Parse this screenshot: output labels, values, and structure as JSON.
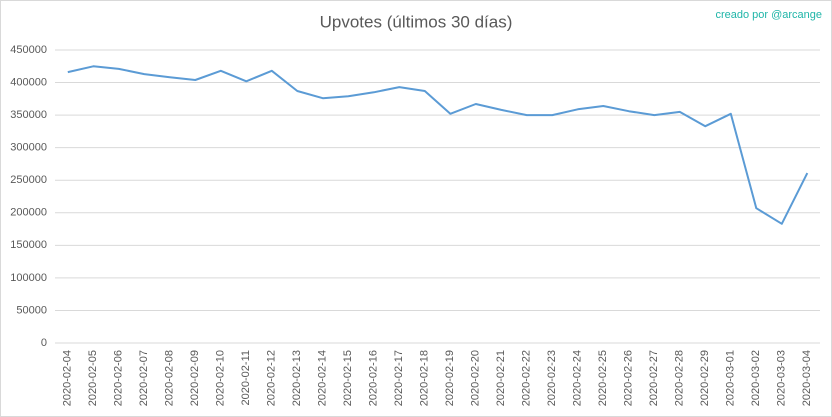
{
  "chart_data": {
    "type": "line",
    "title": "Upvotes (últimos 30 días)",
    "credit": "creado por @arcange",
    "categories": [
      "2020-02-04",
      "2020-02-05",
      "2020-02-06",
      "2020-02-07",
      "2020-02-08",
      "2020-02-09",
      "2020-02-10",
      "2020-02-11",
      "2020-02-12",
      "2020-02-13",
      "2020-02-14",
      "2020-02-15",
      "2020-02-16",
      "2020-02-17",
      "2020-02-18",
      "2020-02-19",
      "2020-02-20",
      "2020-02-21",
      "2020-02-22",
      "2020-02-23",
      "2020-02-24",
      "2020-02-25",
      "2020-02-26",
      "2020-02-27",
      "2020-02-28",
      "2020-02-29",
      "2020-03-01",
      "2020-03-02",
      "2020-03-03",
      "2020-03-04"
    ],
    "values": [
      416000,
      425000,
      421000,
      413000,
      408000,
      404000,
      418000,
      402000,
      418000,
      387000,
      376000,
      379000,
      385000,
      393000,
      387000,
      352000,
      367000,
      358000,
      350000,
      350000,
      359000,
      364000,
      356000,
      350000,
      355000,
      333000,
      352000,
      207000,
      183000,
      261000
    ],
    "color": "#5b9bd5",
    "ylim": [
      0,
      450000
    ],
    "yticks": [
      0,
      50000,
      100000,
      150000,
      200000,
      250000,
      300000,
      350000,
      400000,
      450000
    ],
    "grid": true
  }
}
